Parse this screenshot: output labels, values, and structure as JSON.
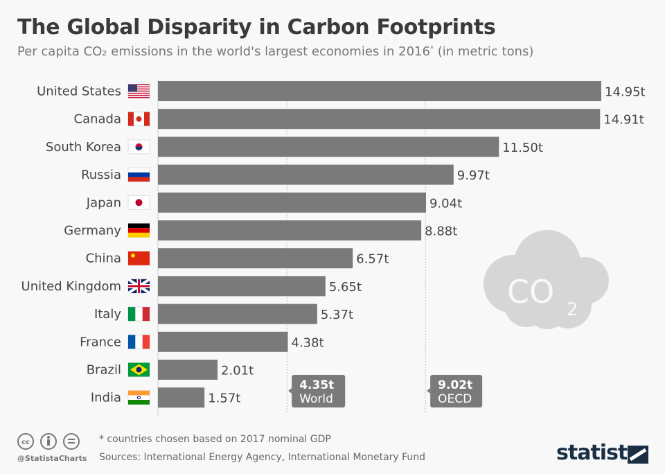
{
  "title": "The Global Disparity in Carbon Footprints",
  "subtitle": {
    "main": "Per capita CO₂ emissions in the world's largest economies in 2016",
    "sup": "*",
    "tail": " (in metric tons)"
  },
  "chart_data": {
    "type": "bar",
    "orientation": "horizontal",
    "categories": [
      "United States",
      "Canada",
      "South Korea",
      "Russia",
      "Japan",
      "Germany",
      "China",
      "United Kingdom",
      "Italy",
      "France",
      "Brazil",
      "India"
    ],
    "values": [
      14.95,
      14.91,
      11.5,
      9.97,
      9.04,
      8.88,
      6.57,
      5.65,
      5.37,
      4.38,
      2.01,
      1.57
    ],
    "value_labels": [
      "14.95t",
      "14.91t",
      "11.50t",
      "9.97t",
      "9.04t",
      "8.88t",
      "6.57t",
      "5.65t",
      "5.37t",
      "4.38t",
      "2.01t",
      "1.57t"
    ],
    "xlim": [
      0,
      14.95
    ],
    "bar_color": "#7a7a7a",
    "reference_lines": [
      {
        "value": 4.35,
        "label_value": "4.35t",
        "label": "World"
      },
      {
        "value": 9.02,
        "label_value": "9.02t",
        "label": "OECD"
      }
    ],
    "icon": "co2-cloud-icon",
    "icon_text": "CO",
    "icon_sub": "2"
  },
  "footer": {
    "note": "* countries chosen based on 2017 nominal GDP",
    "sources": "Sources: International Energy Agency, International Monetary Fund",
    "handle": "@StatistaCharts",
    "logo": "statista",
    "license_icons": [
      "cc-icon",
      "by-icon",
      "nd-icon"
    ]
  }
}
